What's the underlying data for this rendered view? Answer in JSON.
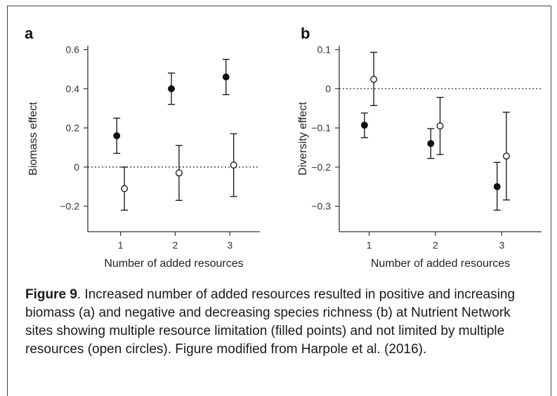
{
  "caption": {
    "figure_label": "Figure 9",
    "text": ". Increased number of added resources resulted in positive and increasing biomass (a) and negative and decreasing species richness (b) at Nutrient Network sites showing multiple resource limitation (filled points) and not limited by multiple resources (open circles). Figure modified from Harpole et al. (2016)."
  },
  "colors": {
    "axis": "#333333",
    "marker": "#111111",
    "zero_line": "#333333"
  },
  "chart_data": [
    {
      "type": "scatter",
      "panel_label": "a",
      "title": "",
      "xlabel": "Number of added resources",
      "ylabel": "Biomass effect",
      "xticks": [
        1,
        2,
        3
      ],
      "yticks": [
        -0.2,
        0,
        0.2,
        0.4,
        0.6
      ],
      "ytick_labels": [
        "−0.2",
        "0",
        "0.2",
        "0.4",
        "0.6"
      ],
      "ylim": [
        -0.33,
        0.62
      ],
      "xlim": [
        0.4,
        3.55
      ],
      "reference_line": 0,
      "series": [
        {
          "style": "filled",
          "points": [
            {
              "x": 0.93,
              "y": 0.16,
              "low": 0.07,
              "high": 0.25
            },
            {
              "x": 1.93,
              "y": 0.4,
              "low": 0.32,
              "high": 0.48
            },
            {
              "x": 2.93,
              "y": 0.46,
              "low": 0.37,
              "high": 0.55
            }
          ]
        },
        {
          "style": "open",
          "points": [
            {
              "x": 1.07,
              "y": -0.11,
              "low": -0.22,
              "high": 0.0
            },
            {
              "x": 2.07,
              "y": -0.03,
              "low": -0.17,
              "high": 0.11
            },
            {
              "x": 3.07,
              "y": 0.01,
              "low": -0.15,
              "high": 0.17
            }
          ]
        }
      ]
    },
    {
      "type": "scatter",
      "panel_label": "b",
      "title": "",
      "xlabel": "Number of added resources",
      "ylabel": "Diversity effect",
      "xticks": [
        1,
        2,
        3
      ],
      "yticks": [
        -0.3,
        -0.2,
        -0.1,
        0,
        0.1
      ],
      "ytick_labels": [
        "−0.3",
        "−0.2",
        "−0.1",
        "0",
        "0.1"
      ],
      "ylim": [
        -0.365,
        0.11
      ],
      "xlim": [
        0.55,
        3.6
      ],
      "reference_line": 0,
      "series": [
        {
          "style": "filled",
          "points": [
            {
              "x": 0.93,
              "y": -0.093,
              "low": -0.125,
              "high": -0.062
            },
            {
              "x": 1.93,
              "y": -0.14,
              "low": -0.178,
              "high": -0.102
            },
            {
              "x": 2.93,
              "y": -0.25,
              "low": -0.31,
              "high": -0.188
            }
          ]
        },
        {
          "style": "open",
          "points": [
            {
              "x": 1.07,
              "y": 0.024,
              "low": -0.043,
              "high": 0.093
            },
            {
              "x": 2.07,
              "y": -0.095,
              "low": -0.168,
              "high": -0.022
            },
            {
              "x": 3.07,
              "y": -0.172,
              "low": -0.284,
              "high": -0.06
            }
          ]
        }
      ]
    }
  ]
}
